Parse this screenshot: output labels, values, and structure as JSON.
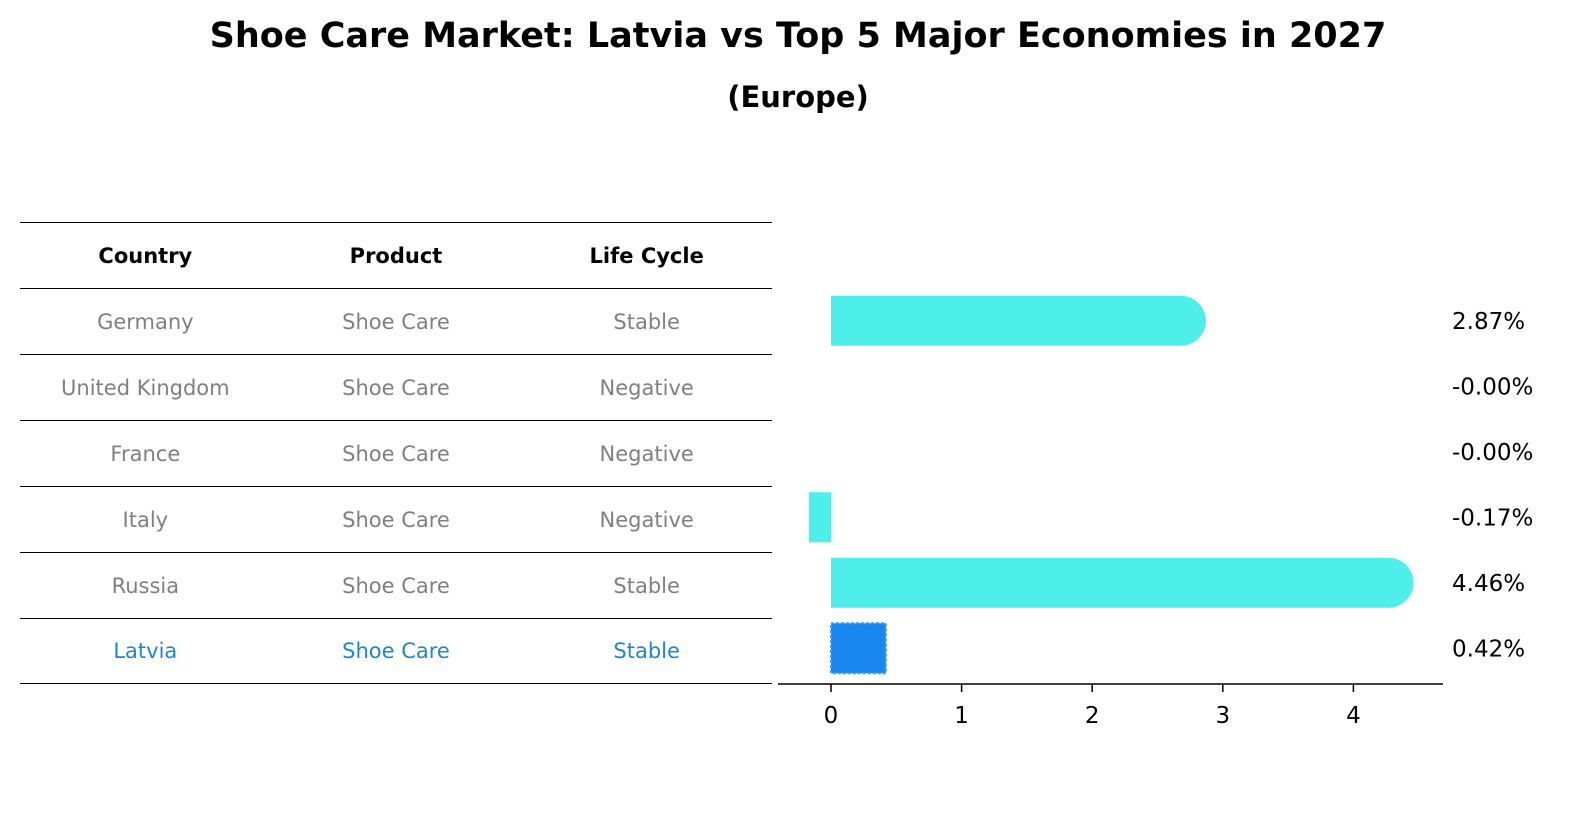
{
  "chart_data": {
    "type": "bar",
    "title": "Shoe Care Market: Latvia vs Top 5 Major Economies in 2027",
    "subtitle": "(Europe)",
    "table": {
      "headers": [
        "Country",
        "Product",
        "Life Cycle"
      ],
      "rows": [
        [
          "Germany",
          "Shoe Care",
          "Stable"
        ],
        [
          "United Kingdom",
          "Shoe Care",
          "Negative"
        ],
        [
          "France",
          "Shoe Care",
          "Negative"
        ],
        [
          "Italy",
          "Shoe Care",
          "Negative"
        ],
        [
          "Russia",
          "Shoe Care",
          "Stable"
        ],
        [
          "Latvia",
          "Shoe Care",
          "Stable"
        ]
      ],
      "highlight_row": 5
    },
    "categories": [
      "Germany",
      "United Kingdom",
      "France",
      "Italy",
      "Russia",
      "Latvia"
    ],
    "values": [
      2.87,
      -0.0,
      -0.0,
      -0.17,
      4.46,
      0.42
    ],
    "value_labels": [
      "2.87%",
      "-0.00%",
      "-0.00%",
      "-0.17%",
      "4.46%",
      "0.42%"
    ],
    "xlim": [
      -0.4,
      4.7
    ],
    "xticks": [
      0,
      1,
      2,
      3,
      4
    ],
    "grid": false,
    "colors": {
      "bar": "#4eeeea",
      "highlight": "#1a86f0",
      "highlight_text": "#1f87d0",
      "muted_text": "#808080"
    }
  }
}
